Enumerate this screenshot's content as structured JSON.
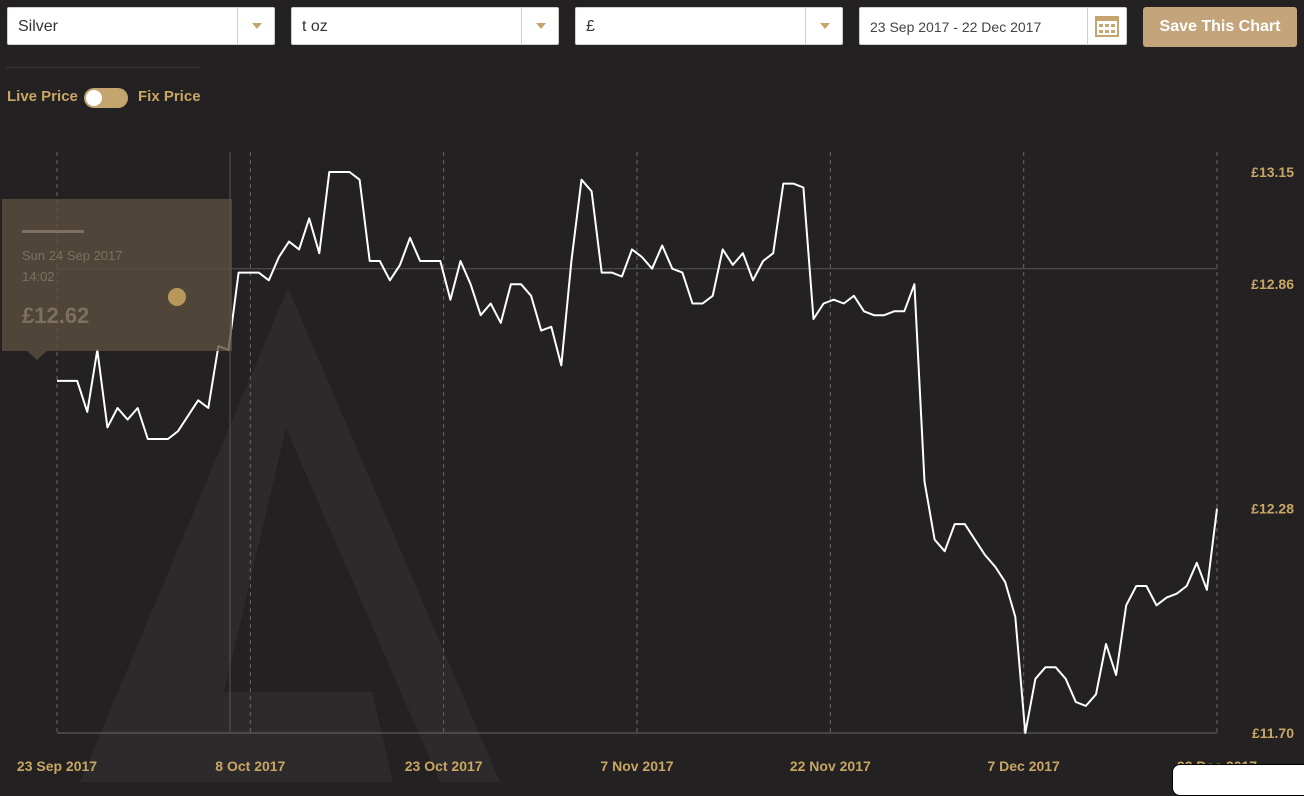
{
  "toolbar": {
    "metal": "Silver",
    "unit": "t oz",
    "currency": "£",
    "date_range": "23 Sep 2017 - 22 Dec 2017",
    "save_label": "Save This Chart"
  },
  "toggle": {
    "left_label": "Live Price",
    "right_label": "Fix Price"
  },
  "tooltip": {
    "date": "Sun 24 Sep 2017",
    "time": "14:02",
    "price": "£12.62"
  },
  "colors": {
    "accent": "#c4a56e",
    "background": "#232122",
    "line": "#ffffff"
  },
  "chart_data": {
    "type": "line",
    "title": "",
    "xlabel": "",
    "ylabel": "",
    "currency_symbol": "£",
    "x_ticks": [
      "23 Sep 2017",
      "8 Oct 2017",
      "23 Oct 2017",
      "7 Nov 2017",
      "22 Nov 2017",
      "7 Dec 2017",
      "22 Dec 2017"
    ],
    "y_ticks": [
      11.7,
      12.28,
      12.86,
      13.15
    ],
    "y_tick_labels": [
      "£11.70",
      "£12.28",
      "£12.86",
      "£13.15"
    ],
    "ylim": [
      11.7,
      13.15
    ],
    "reference_level": 12.9,
    "series": [
      {
        "values": [
          12.61,
          12.61,
          12.61,
          12.53,
          12.69,
          12.49,
          12.54,
          12.51,
          12.54,
          12.46,
          12.46,
          12.46,
          12.48,
          12.52,
          12.56,
          12.54,
          12.7,
          12.69,
          12.89,
          12.89,
          12.89,
          12.87,
          12.93,
          12.97,
          12.95,
          13.03,
          12.94,
          13.15,
          13.15,
          13.15,
          13.13,
          12.92,
          12.92,
          12.87,
          12.91,
          12.98,
          12.92,
          12.92,
          12.92,
          12.82,
          12.92,
          12.86,
          12.78,
          12.81,
          12.76,
          12.86,
          12.86,
          12.83,
          12.74,
          12.75,
          12.65,
          12.92,
          13.13,
          13.1,
          12.89,
          12.89,
          12.88,
          12.95,
          12.93,
          12.9,
          12.96,
          12.9,
          12.89,
          12.81,
          12.81,
          12.83,
          12.95,
          12.91,
          12.94,
          12.87,
          12.92,
          12.94,
          13.12,
          13.12,
          13.11,
          12.77,
          12.81,
          12.82,
          12.81,
          12.83,
          12.79,
          12.78,
          12.78,
          12.79,
          12.79,
          12.86,
          12.35,
          12.2,
          12.17,
          12.24,
          12.24,
          12.2,
          12.16,
          12.13,
          12.09,
          12.0,
          11.7,
          11.84,
          11.87,
          11.87,
          11.84,
          11.78,
          11.77,
          11.8,
          11.93,
          11.85,
          12.03,
          12.08,
          12.08,
          12.03,
          12.05,
          12.06,
          12.08,
          12.14,
          12.07,
          12.28
        ]
      }
    ],
    "grid": "vertical-dashed",
    "legend": "none"
  }
}
